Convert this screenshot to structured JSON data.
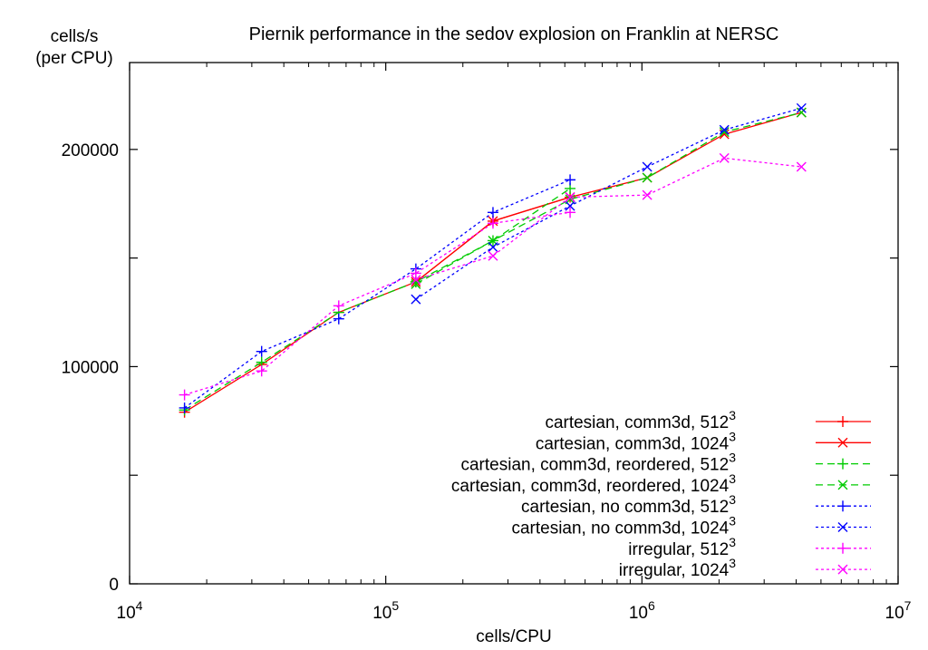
{
  "chart_data": {
    "type": "line",
    "title": "Piernik performance in the sedov explosion on Franklin at NERSC",
    "ylabel_line1": "cells/s",
    "ylabel_line2": "(per CPU)",
    "xlabel": "cells/CPU",
    "xscale": "log",
    "xlim": [
      10000,
      10000000
    ],
    "ylim": [
      0,
      240000
    ],
    "xticks": [
      {
        "value": 10000,
        "base": "10",
        "exp": "4"
      },
      {
        "value": 100000,
        "base": "10",
        "exp": "5"
      },
      {
        "value": 1000000,
        "base": "10",
        "exp": "6"
      },
      {
        "value": 10000000,
        "base": "10",
        "exp": "7"
      }
    ],
    "yticks": [
      {
        "value": 0,
        "label": "0"
      },
      {
        "value": 50000,
        "label": ""
      },
      {
        "value": 100000,
        "label": "100000"
      },
      {
        "value": 150000,
        "label": ""
      },
      {
        "value": 200000,
        "label": "200000"
      }
    ],
    "grid": false,
    "legend_position": "bottom-right",
    "series": [
      {
        "name": "cartesian, comm3d, 512",
        "sup": "3",
        "color": "#ff0000",
        "dash": "solid",
        "marker": "plus",
        "x": [
          16384,
          32768,
          65536,
          131072,
          262144,
          524288
        ],
        "y": [
          79000,
          101000,
          125000,
          139000,
          167000,
          178000
        ]
      },
      {
        "name": "cartesian, comm3d, 1024",
        "sup": "3",
        "color": "#ff0000",
        "dash": "solid",
        "marker": "x",
        "x": [
          131072,
          262144,
          524288,
          1048576,
          2097152,
          4194304
        ],
        "y": [
          139000,
          167000,
          178000,
          187000,
          207000,
          217000
        ]
      },
      {
        "name": "cartesian, comm3d, reordered, 512",
        "sup": "3",
        "color": "#00cc00",
        "dash": "dashed",
        "marker": "plus",
        "x": [
          16384,
          32768,
          65536,
          131072,
          262144,
          524288
        ],
        "y": [
          80000,
          102000,
          125000,
          139000,
          158000,
          182000
        ]
      },
      {
        "name": "cartesian, comm3d, reordered, 1024",
        "sup": "3",
        "color": "#00cc00",
        "dash": "dashed",
        "marker": "x",
        "x": [
          131072,
          262144,
          524288,
          1048576,
          2097152,
          4194304
        ],
        "y": [
          138000,
          158000,
          177000,
          187000,
          208000,
          217000
        ]
      },
      {
        "name": "cartesian, no comm3d, 512",
        "sup": "3",
        "color": "#0000ff",
        "dash": "dotted",
        "marker": "plus",
        "x": [
          16384,
          32768,
          65536,
          131072,
          262144,
          524288
        ],
        "y": [
          81000,
          107000,
          122000,
          145000,
          171000,
          186000
        ]
      },
      {
        "name": "cartesian, no comm3d, 1024",
        "sup": "3",
        "color": "#0000ff",
        "dash": "dotted",
        "marker": "x",
        "x": [
          131072,
          262144,
          524288,
          1048576,
          2097152,
          4194304
        ],
        "y": [
          131000,
          155000,
          174000,
          192000,
          209000,
          219000
        ]
      },
      {
        "name": "irregular, 512",
        "sup": "3",
        "color": "#ff00ff",
        "dash": "dotted",
        "marker": "plus",
        "x": [
          16384,
          32768,
          65536,
          131072,
          262144,
          524288
        ],
        "y": [
          87000,
          98000,
          128000,
          143000,
          166000,
          171000
        ]
      },
      {
        "name": "irregular, 1024",
        "sup": "3",
        "color": "#ff00ff",
        "dash": "dotted",
        "marker": "x",
        "x": [
          131072,
          262144,
          524288,
          1048576,
          2097152,
          4194304
        ],
        "y": [
          140000,
          151000,
          178000,
          179000,
          196000,
          192000
        ]
      }
    ]
  }
}
